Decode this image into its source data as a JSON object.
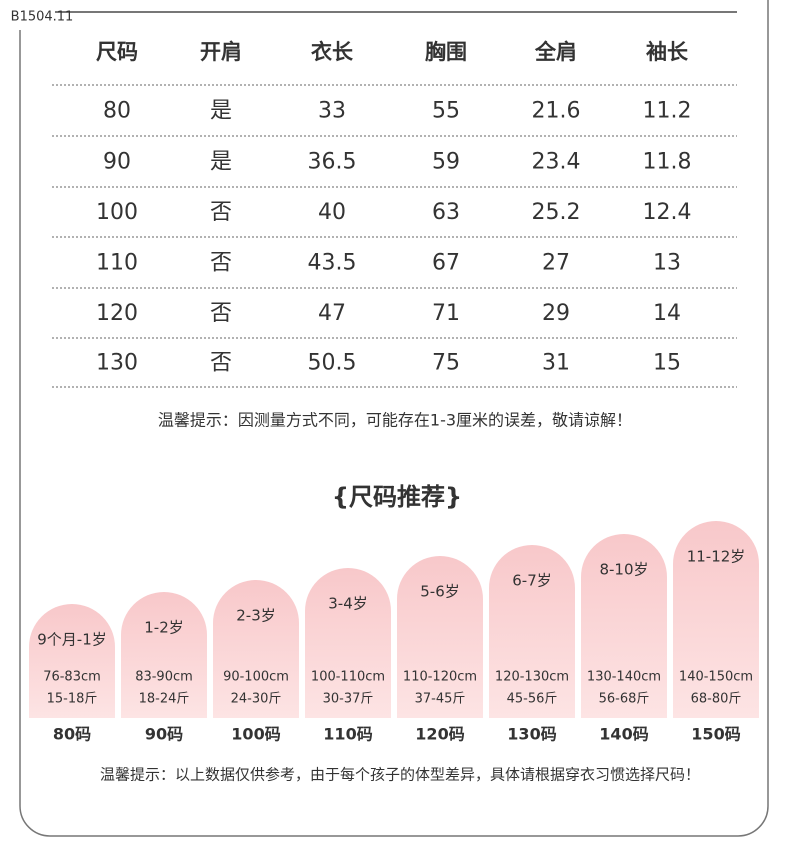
{
  "header": {
    "watermark": "B1504.11"
  },
  "table": {
    "columns": [
      "尺码",
      "开肩",
      "衣长",
      "胸围",
      "全肩",
      "袖长"
    ],
    "rows": [
      [
        "80",
        "是",
        "33",
        "55",
        "21.6",
        "11.2"
      ],
      [
        "90",
        "是",
        "36.5",
        "59",
        "23.4",
        "11.8"
      ],
      [
        "100",
        "否",
        "40",
        "63",
        "25.2",
        "12.4"
      ],
      [
        "110",
        "否",
        "43.5",
        "67",
        "27",
        "13"
      ],
      [
        "120",
        "否",
        "47",
        "71",
        "29",
        "14"
      ],
      [
        "130",
        "否",
        "50.5",
        "75",
        "31",
        "15"
      ]
    ],
    "note": "温馨提示：因测量方式不同，可能存在1-3厘米的误差，敬请谅解！"
  },
  "recommend": {
    "title": "{尺码推荐}",
    "items": [
      {
        "age": "9个月-1岁",
        "height": "76-83cm",
        "weight": "15-18斤",
        "size": "80码"
      },
      {
        "age": "1-2岁",
        "height": "83-90cm",
        "weight": "18-24斤",
        "size": "90码"
      },
      {
        "age": "2-3岁",
        "height": "90-100cm",
        "weight": "24-30斤",
        "size": "100码"
      },
      {
        "age": "3-4岁",
        "height": "100-110cm",
        "weight": "30-37斤",
        "size": "110码"
      },
      {
        "age": "5-6岁",
        "height": "110-120cm",
        "weight": "37-45斤",
        "size": "120码"
      },
      {
        "age": "6-7岁",
        "height": "120-130cm",
        "weight": "45-56斤",
        "size": "130码"
      },
      {
        "age": "8-10岁",
        "height": "130-140cm",
        "weight": "56-68斤",
        "size": "140码"
      },
      {
        "age": "11-12岁",
        "height": "140-150cm",
        "weight": "68-80斤",
        "size": "150码"
      }
    ],
    "note": "温馨提示：以上数据仅供参考，由于每个孩子的体型差异，具体请根据穿衣习惯选择尺码！"
  }
}
